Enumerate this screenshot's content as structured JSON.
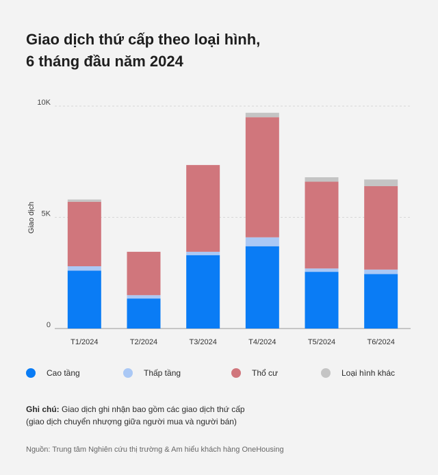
{
  "title": {
    "line1": "Giao dịch thứ cấp theo loại hình,",
    "line2": "6 tháng đầu năm 2024"
  },
  "chart_data": {
    "type": "bar",
    "stacked": true,
    "ylabel": "Giao dịch",
    "ylim": [
      0,
      10000
    ],
    "yticks": [
      {
        "value": 0,
        "label": "0"
      },
      {
        "value": 5000,
        "label": "5K"
      },
      {
        "value": 10000,
        "label": "10K"
      }
    ],
    "categories": [
      "T1/2024",
      "T2/2024",
      "T3/2024",
      "T4/2024",
      "T5/2024",
      "T6/2024"
    ],
    "series": [
      {
        "name": "Cao tầng",
        "color": "#0a7cf5",
        "values": [
          2600,
          1350,
          3300,
          3700,
          2550,
          2450
        ]
      },
      {
        "name": "Thấp tầng",
        "color": "#aac8f5",
        "values": [
          200,
          150,
          150,
          400,
          150,
          200
        ]
      },
      {
        "name": "Thổ cư",
        "color": "#d0767c",
        "values": [
          2900,
          1950,
          3900,
          5400,
          3900,
          3750
        ]
      },
      {
        "name": "Loại hình khác",
        "color": "#c4c4c4",
        "values": [
          100,
          0,
          0,
          200,
          200,
          300
        ]
      }
    ],
    "grid": true
  },
  "note": {
    "label": "Ghi chú:",
    "line1": "Giao dịch ghi nhận bao gồm các giao dịch thứ cấp",
    "line2": "(giao dịch chuyển nhượng giữa người mua và người bán)"
  },
  "source": "Nguồn: Trung tâm Nghiên cứu thị trường & Am hiểu khách hàng OneHousing"
}
